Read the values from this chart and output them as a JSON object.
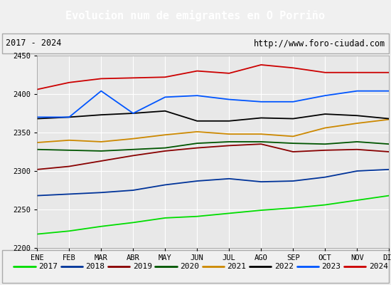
{
  "title": "Evolucion num de emigrantes en O Porriño",
  "subtitle_left": "2017 - 2024",
  "subtitle_right": "http://www.foro-ciudad.com",
  "title_bg": "#4472c4",
  "title_color": "white",
  "xlabel_months": [
    "ENE",
    "FEB",
    "MAR",
    "ABR",
    "MAY",
    "JUN",
    "JUL",
    "AGO",
    "SEP",
    "OCT",
    "NOV",
    "DIC"
  ],
  "ylim": [
    2200,
    2450
  ],
  "yticks": [
    2200,
    2250,
    2300,
    2350,
    2400,
    2450
  ],
  "series": {
    "2017": {
      "color": "#00dd00",
      "values": [
        2218,
        2222,
        2228,
        2233,
        2239,
        2241,
        2245,
        2249,
        2252,
        2256,
        2262,
        2268
      ]
    },
    "2018": {
      "color": "#003399",
      "values": [
        2268,
        2270,
        2272,
        2275,
        2282,
        2287,
        2290,
        2286,
        2287,
        2292,
        2300,
        2302
      ]
    },
    "2019": {
      "color": "#880000",
      "values": [
        2302,
        2306,
        2313,
        2320,
        2326,
        2330,
        2333,
        2335,
        2325,
        2327,
        2328,
        2325
      ]
    },
    "2020": {
      "color": "#005500",
      "values": [
        2328,
        2327,
        2326,
        2328,
        2330,
        2336,
        2338,
        2338,
        2336,
        2335,
        2338,
        2335
      ]
    },
    "2021": {
      "color": "#cc8800",
      "values": [
        2337,
        2340,
        2338,
        2342,
        2347,
        2351,
        2348,
        2348,
        2345,
        2356,
        2362,
        2367
      ]
    },
    "2022": {
      "color": "#000000",
      "values": [
        2368,
        2370,
        2373,
        2375,
        2378,
        2365,
        2365,
        2369,
        2368,
        2374,
        2372,
        2368
      ]
    },
    "2023": {
      "color": "#0055ff",
      "values": [
        2370,
        2370,
        2404,
        2375,
        2396,
        2398,
        2393,
        2390,
        2390,
        2398,
        2404,
        2404
      ]
    },
    "2024": {
      "color": "#cc0000",
      "values": [
        2406,
        2415,
        2420,
        2421,
        2422,
        2430,
        2427,
        2438,
        2434,
        2428,
        2428,
        2428
      ]
    }
  },
  "bg_color": "#f0f0f0",
  "plot_bg": "#e8e8e8",
  "grid_color": "white",
  "subtitle_border": "#aaaaaa",
  "legend_border": "#aaaaaa"
}
